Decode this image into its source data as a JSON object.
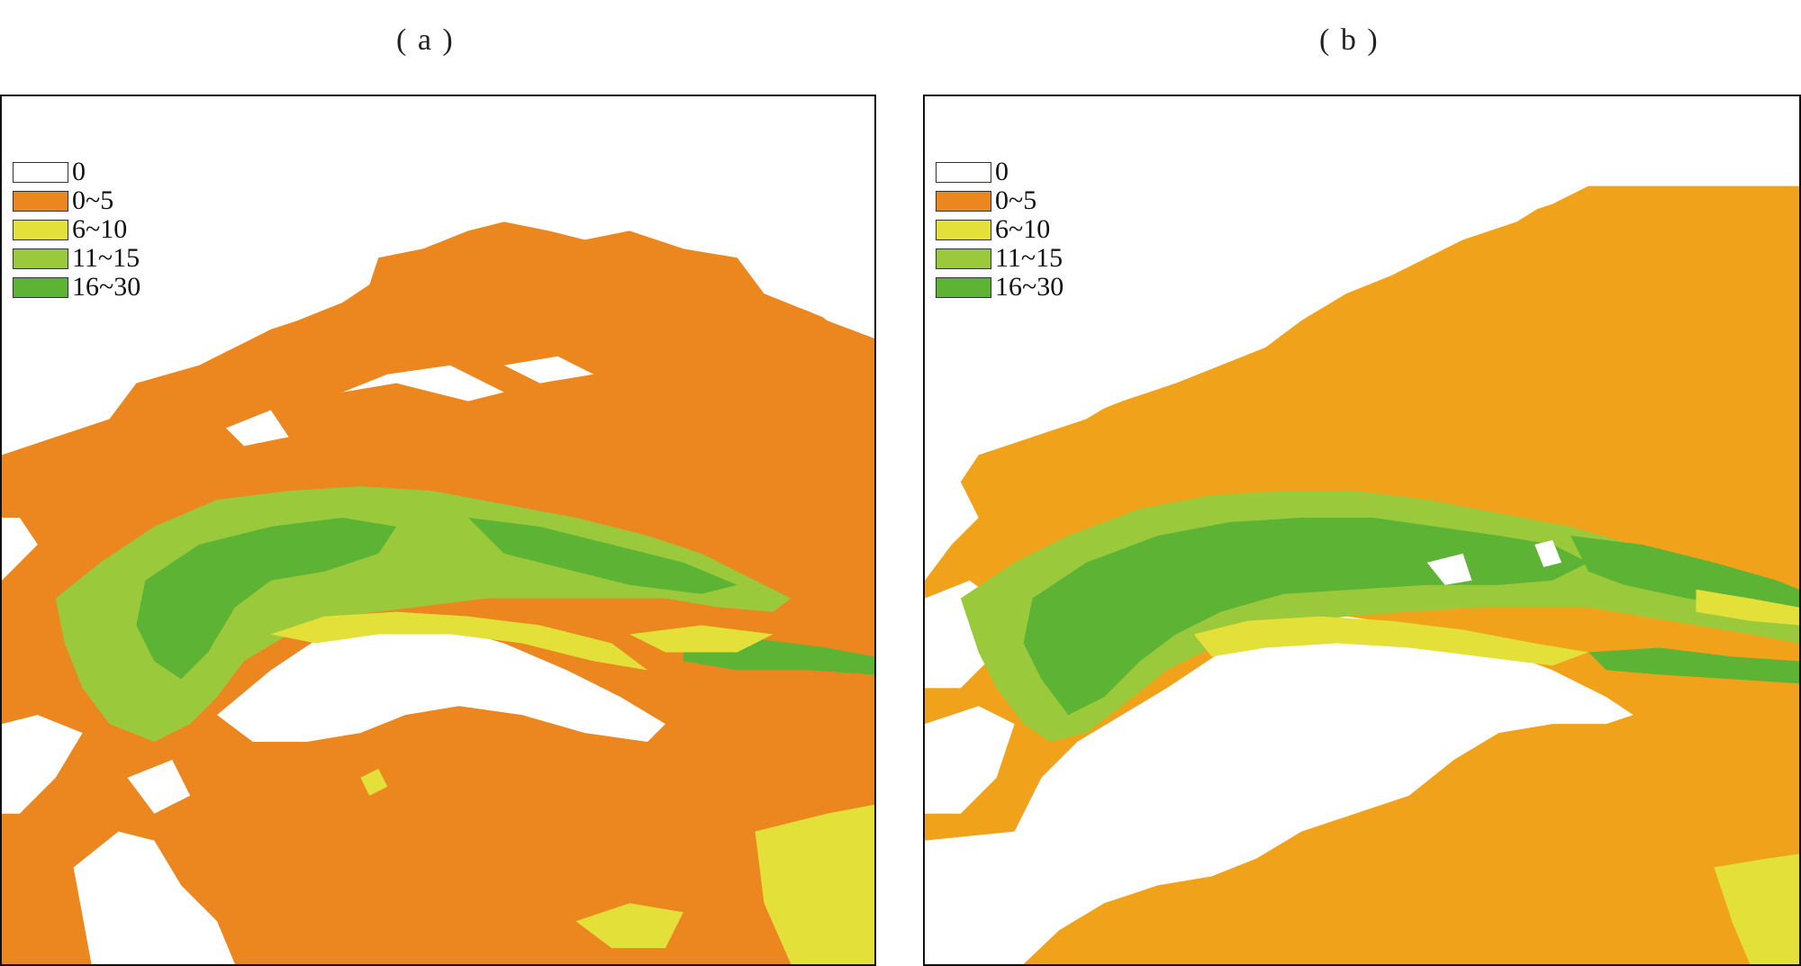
{
  "panels": [
    {
      "id": "a",
      "label": "( a )",
      "legend": [
        {
          "label": "0",
          "color": "#ffffff"
        },
        {
          "label": "0~5",
          "color": "#ec8720"
        },
        {
          "label": "6~10",
          "color": "#e4e03a"
        },
        {
          "label": "11~15",
          "color": "#9ac93c"
        },
        {
          "label": "16~30",
          "color": "#5db333"
        }
      ]
    },
    {
      "id": "b",
      "label": "( b )",
      "legend": [
        {
          "label": "0",
          "color": "#ffffff"
        },
        {
          "label": "0~5",
          "color": "#ec8720"
        },
        {
          "label": "6~10",
          "color": "#e4e03a"
        },
        {
          "label": "11~15",
          "color": "#9ac93c"
        },
        {
          "label": "16~30",
          "color": "#5db333"
        }
      ]
    }
  ],
  "map_colors": {
    "zero": "#ffffff",
    "range_0_5_a": "#ec8720",
    "range_0_5_b": "#f0a21a",
    "range_6_10": "#e4e03a",
    "range_11_15": "#9ac93c",
    "range_16_30": "#5db333"
  }
}
